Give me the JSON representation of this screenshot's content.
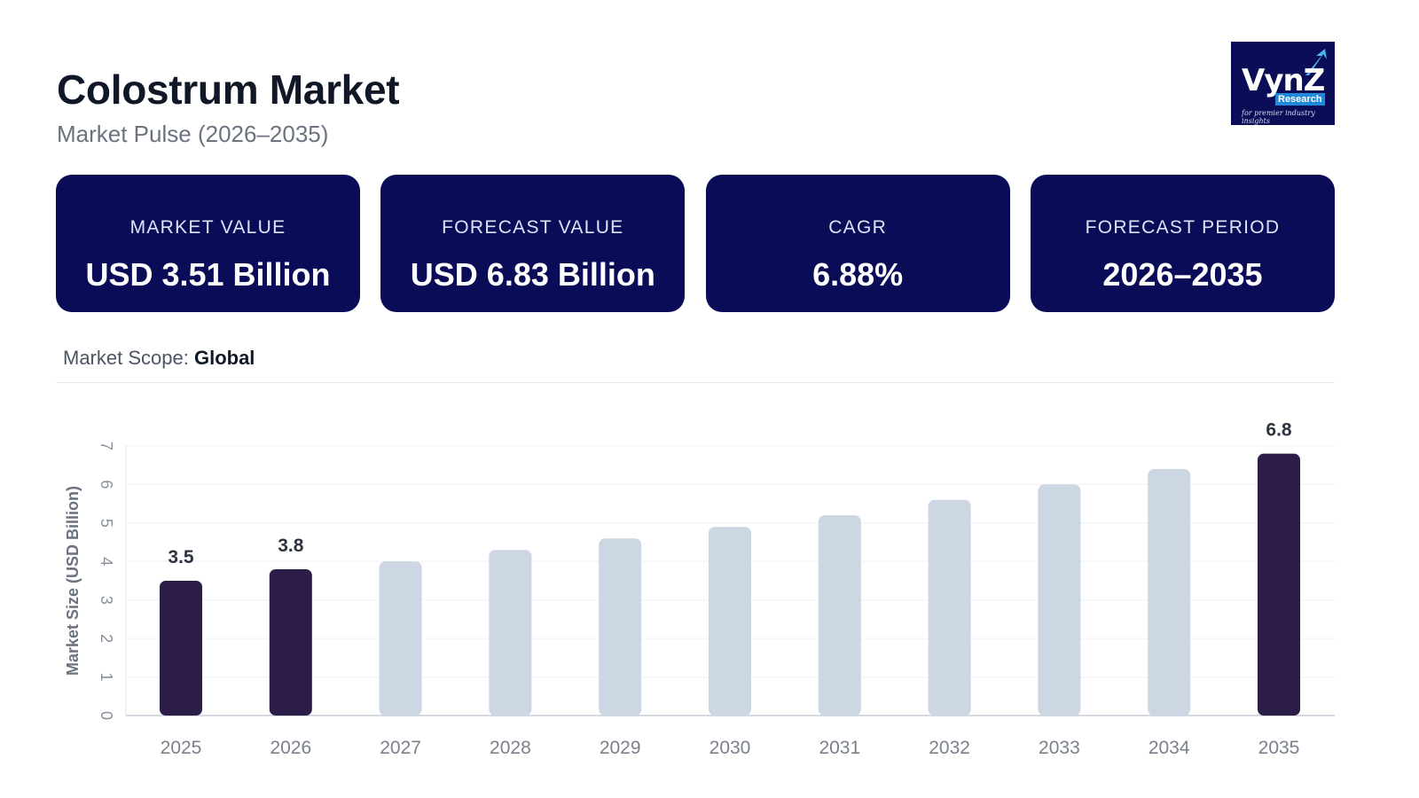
{
  "header": {
    "title": "Colostrum Market",
    "subtitle": "Market Pulse (2026–2035)"
  },
  "logo": {
    "main": "VynZ",
    "sub": "Research",
    "tagline": "for premier industry insights"
  },
  "cards": [
    {
      "label": "MARKET VALUE",
      "value": "USD 3.51 Billion"
    },
    {
      "label": "FORECAST VALUE",
      "value": "USD 6.83 Billion"
    },
    {
      "label": "CAGR",
      "value": "6.88%"
    },
    {
      "label": "FORECAST PERIOD",
      "value": "2026–2035"
    }
  ],
  "scope": {
    "label": "Market Scope:",
    "value": "Global"
  },
  "colors": {
    "card_bg": "#0a0c57",
    "bar_highlight": "#2b1d47",
    "bar_default": "#cdd6e3"
  },
  "chart_data": {
    "type": "bar",
    "categories": [
      "2025",
      "2026",
      "2027",
      "2028",
      "2029",
      "2030",
      "2031",
      "2032",
      "2033",
      "2034",
      "2035"
    ],
    "values": [
      3.5,
      3.8,
      4.0,
      4.3,
      4.6,
      4.9,
      5.2,
      5.6,
      6.0,
      6.4,
      6.8
    ],
    "highlighted": [
      "2025",
      "2026",
      "2035"
    ],
    "data_labels": {
      "2025": "3.5",
      "2026": "3.8",
      "2035": "6.8"
    },
    "ylabel": "Market Size (USD Billion)",
    "xlabel": "",
    "ylim": [
      0,
      7
    ],
    "yticks": [
      0,
      1,
      2,
      3,
      4,
      5,
      6,
      7
    ],
    "grid": true
  }
}
